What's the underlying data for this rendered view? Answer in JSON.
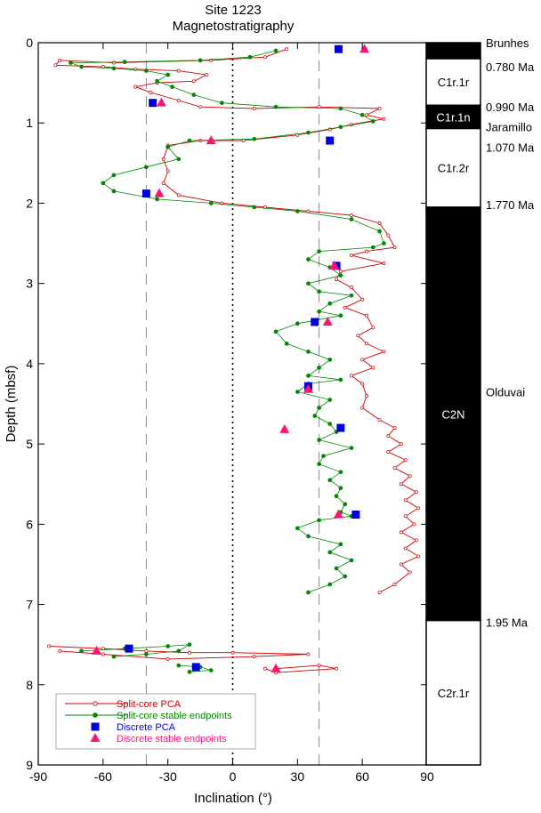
{
  "chart_data": {
    "type": "scatter",
    "title": "Site 1223",
    "subtitle": "Magnetostratigraphy",
    "xlabel": "Inclination (°)",
    "ylabel": "Depth (mbsf)",
    "xlim": [
      -90,
      90
    ],
    "ylim": [
      9,
      0
    ],
    "xticks": [
      "-90",
      "-60",
      "-30",
      "0",
      "30",
      "60",
      "90"
    ],
    "yticks": [
      "0",
      "1",
      "2",
      "3",
      "4",
      "5",
      "6",
      "7",
      "8",
      "9"
    ],
    "reference_lines": [
      {
        "x": -40,
        "style": "dashed"
      },
      {
        "x": 0,
        "style": "dotted"
      },
      {
        "x": 40,
        "style": "dashed"
      }
    ],
    "legend_position": "bottom-left",
    "series": [
      {
        "name": "Split-core PCA",
        "color": "#cc0000",
        "marker": "small open circle",
        "segments": [
          [
            [
              25,
              0.08
            ],
            [
              15,
              0.18
            ],
            [
              -10,
              0.22
            ],
            [
              -55,
              0.25
            ],
            [
              -80,
              0.22
            ],
            [
              -82,
              0.28
            ],
            [
              -60,
              0.3
            ],
            [
              -45,
              0.33
            ],
            [
              -25,
              0.35
            ],
            [
              -12,
              0.4
            ],
            [
              -18,
              0.48
            ],
            [
              -35,
              0.5
            ],
            [
              -45,
              0.55
            ],
            [
              -38,
              0.62
            ],
            [
              -25,
              0.72
            ],
            [
              -15,
              0.8
            ],
            [
              10,
              0.82
            ],
            [
              40,
              0.8
            ],
            [
              68,
              0.82
            ],
            [
              62,
              0.9
            ],
            [
              70,
              0.95
            ],
            [
              55,
              1.02
            ],
            [
              45,
              1.08
            ],
            [
              30,
              1.15
            ],
            [
              5,
              1.22
            ],
            [
              -15,
              1.22
            ],
            [
              -30,
              1.28
            ],
            [
              -32,
              1.45
            ],
            [
              -30,
              1.6
            ],
            [
              -32,
              1.75
            ],
            [
              -25,
              1.9
            ],
            [
              -5,
              2.0
            ],
            [
              15,
              2.05
            ],
            [
              35,
              2.1
            ],
            [
              55,
              2.15
            ],
            [
              68,
              2.25
            ],
            [
              72,
              2.4
            ],
            [
              75,
              2.55
            ],
            [
              62,
              2.6
            ],
            [
              55,
              2.65
            ],
            [
              70,
              2.75
            ],
            [
              50,
              2.85
            ],
            [
              48,
              2.95
            ],
            [
              55,
              3.05
            ],
            [
              60,
              3.2
            ],
            [
              52,
              3.3
            ],
            [
              62,
              3.4
            ],
            [
              65,
              3.55
            ],
            [
              58,
              3.65
            ],
            [
              62,
              3.75
            ],
            [
              70,
              3.85
            ],
            [
              60,
              3.95
            ],
            [
              65,
              4.05
            ],
            [
              55,
              4.15
            ],
            [
              60,
              4.25
            ],
            [
              62,
              4.4
            ],
            [
              60,
              4.55
            ],
            [
              68,
              4.7
            ],
            [
              75,
              4.8
            ],
            [
              72,
              4.9
            ],
            [
              78,
              5.0
            ],
            [
              72,
              5.1
            ],
            [
              80,
              5.2
            ],
            [
              75,
              5.3
            ],
            [
              82,
              5.4
            ],
            [
              78,
              5.5
            ],
            [
              85,
              5.6
            ],
            [
              80,
              5.7
            ],
            [
              86,
              5.8
            ],
            [
              80,
              5.9
            ],
            [
              84,
              6.0
            ],
            [
              78,
              6.1
            ],
            [
              85,
              6.2
            ],
            [
              80,
              6.3
            ],
            [
              86,
              6.4
            ],
            [
              78,
              6.5
            ],
            [
              82,
              6.6
            ],
            [
              75,
              6.75
            ],
            [
              68,
              6.85
            ]
          ],
          [
            [
              -85,
              7.52
            ],
            [
              -60,
              7.55
            ],
            [
              -40,
              7.58
            ],
            [
              -20,
              7.6
            ],
            [
              0,
              7.6
            ],
            [
              35,
              7.62
            ],
            [
              10,
              7.65
            ],
            [
              -30,
              7.68
            ],
            [
              -60,
              7.62
            ],
            [
              -80,
              7.58
            ]
          ],
          [
            [
              20,
              7.8
            ],
            [
              40,
              7.76
            ],
            [
              48,
              7.8
            ],
            [
              20,
              7.85
            ],
            [
              15,
              7.8
            ]
          ]
        ]
      },
      {
        "name": "Split-core stable endpoints",
        "color": "#008800",
        "marker": "small filled circle",
        "segments": [
          [
            [
              20,
              0.1
            ],
            [
              8,
              0.18
            ],
            [
              -15,
              0.22
            ],
            [
              -50,
              0.24
            ],
            [
              -75,
              0.25
            ],
            [
              -70,
              0.3
            ],
            [
              -55,
              0.32
            ],
            [
              -40,
              0.35
            ],
            [
              -30,
              0.4
            ],
            [
              -35,
              0.48
            ],
            [
              -28,
              0.55
            ],
            [
              -18,
              0.65
            ],
            [
              -5,
              0.75
            ],
            [
              20,
              0.8
            ],
            [
              50,
              0.82
            ],
            [
              60,
              0.9
            ],
            [
              65,
              0.98
            ],
            [
              50,
              1.05
            ],
            [
              35,
              1.12
            ],
            [
              10,
              1.2
            ],
            [
              -20,
              1.22
            ],
            [
              -30,
              1.3
            ],
            [
              -25,
              1.45
            ],
            [
              -40,
              1.55
            ],
            [
              -55,
              1.65
            ],
            [
              -60,
              1.75
            ],
            [
              -55,
              1.85
            ],
            [
              -35,
              1.95
            ],
            [
              -10,
              2.0
            ],
            [
              10,
              2.05
            ],
            [
              30,
              2.1
            ],
            [
              55,
              2.2
            ],
            [
              68,
              2.35
            ],
            [
              70,
              2.5
            ],
            [
              65,
              2.55
            ],
            [
              40,
              2.6
            ],
            [
              35,
              2.7
            ],
            [
              45,
              2.8
            ],
            [
              50,
              2.9
            ],
            [
              35,
              3.0
            ],
            [
              40,
              3.1
            ],
            [
              55,
              3.15
            ],
            [
              45,
              3.25
            ],
            [
              40,
              3.35
            ],
            [
              50,
              3.4
            ],
            [
              30,
              3.5
            ],
            [
              20,
              3.6
            ],
            [
              25,
              3.75
            ],
            [
              35,
              3.85
            ],
            [
              45,
              3.95
            ],
            [
              40,
              4.05
            ],
            [
              35,
              4.15
            ],
            [
              50,
              4.2
            ],
            [
              35,
              4.25
            ],
            [
              30,
              4.35
            ],
            [
              45,
              4.45
            ],
            [
              40,
              4.55
            ],
            [
              38,
              4.65
            ],
            [
              45,
              4.75
            ],
            [
              48,
              4.85
            ],
            [
              40,
              4.95
            ],
            [
              55,
              5.05
            ],
            [
              42,
              5.15
            ],
            [
              40,
              5.25
            ],
            [
              50,
              5.35
            ],
            [
              45,
              5.45
            ],
            [
              50,
              5.55
            ],
            [
              48,
              5.65
            ],
            [
              52,
              5.75
            ],
            [
              50,
              5.85
            ],
            [
              55,
              5.9
            ],
            [
              40,
              5.95
            ],
            [
              30,
              6.05
            ],
            [
              35,
              6.15
            ],
            [
              50,
              6.25
            ],
            [
              45,
              6.35
            ],
            [
              55,
              6.45
            ],
            [
              48,
              6.55
            ],
            [
              52,
              6.65
            ],
            [
              45,
              6.75
            ],
            [
              35,
              6.85
            ]
          ],
          [
            [
              -70,
              7.58
            ],
            [
              -50,
              7.55
            ],
            [
              -30,
              7.52
            ],
            [
              -20,
              7.5
            ],
            [
              -25,
              7.58
            ],
            [
              -40,
              7.62
            ],
            [
              -55,
              7.65
            ]
          ],
          [
            [
              -25,
              7.76
            ],
            [
              -15,
              7.78
            ],
            [
              -10,
              7.82
            ],
            [
              -20,
              7.84
            ]
          ]
        ]
      },
      {
        "name": "Discrete PCA",
        "color": "#0000dd",
        "marker": "filled square",
        "points": [
          [
            49,
            0.08
          ],
          [
            -37,
            0.75
          ],
          [
            45,
            1.22
          ],
          [
            -40,
            1.88
          ],
          [
            48,
            2.78
          ],
          [
            38,
            3.48
          ],
          [
            35,
            4.28
          ],
          [
            50,
            4.8
          ],
          [
            57,
            5.88
          ],
          [
            -48,
            7.55
          ],
          [
            -17,
            7.78
          ]
        ]
      },
      {
        "name": "Discrete stable endpoints",
        "color": "#ff1177",
        "marker": "filled triangle",
        "points": [
          [
            61,
            0.08
          ],
          [
            -33,
            0.75
          ],
          [
            -10,
            1.22
          ],
          [
            -34,
            1.88
          ],
          [
            47,
            2.78
          ],
          [
            44,
            3.48
          ],
          [
            35,
            4.32
          ],
          [
            24,
            4.82
          ],
          [
            49,
            5.88
          ],
          [
            -63,
            7.58
          ],
          [
            20,
            7.8
          ]
        ]
      }
    ],
    "polarity_column": {
      "zones": [
        {
          "name": "",
          "top": 0.0,
          "bottom": 0.2,
          "color": "black"
        },
        {
          "name": "C1r.1r",
          "top": 0.2,
          "bottom": 0.78,
          "color": "white"
        },
        {
          "name": "C1r.1n",
          "top": 0.78,
          "bottom": 1.07,
          "color": "black"
        },
        {
          "name": "C1r.2r",
          "top": 1.07,
          "bottom": 2.05,
          "color": "white"
        },
        {
          "name": "C2N",
          "top": 2.05,
          "bottom": 7.2,
          "color": "black"
        },
        {
          "name": "C2r.1r",
          "top": 7.2,
          "bottom": 9.0,
          "color": "white"
        }
      ],
      "annotations": [
        {
          "text": "Brunhes",
          "depth": 0.0
        },
        {
          "text": "0.780 Ma",
          "depth": 0.3
        },
        {
          "text": "0.990 Ma",
          "depth": 0.8
        },
        {
          "text": "Jaramillo",
          "depth": 1.05
        },
        {
          "text": "1.070 Ma",
          "depth": 1.3
        },
        {
          "text": "1.770 Ma",
          "depth": 2.02
        },
        {
          "text": "Olduvai",
          "depth": 4.35
        },
        {
          "text": "1.95 Ma",
          "depth": 7.22
        }
      ]
    }
  }
}
